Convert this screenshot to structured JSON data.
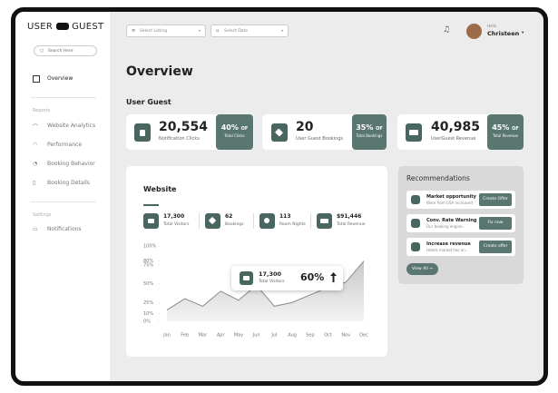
{
  "sidebar": {
    "logo_left": "USER",
    "logo_right": "GUEST",
    "search_placeholder": "Search Here",
    "overview": "Overview",
    "reports_heading": "Reports",
    "reports": [
      "Website Analytics",
      "Performance",
      "Booking Behavior",
      "Booking Details"
    ],
    "settings_heading": "Settings",
    "settings": [
      "Notifications"
    ]
  },
  "topbar": {
    "listing_select": "Select Listing",
    "date_select": "Select Date",
    "greeting": "Hello",
    "user_name": "Christeen"
  },
  "page_title": "Overview",
  "section_title": "User Guest",
  "kpis": [
    {
      "value": "20,554",
      "label": "Notification Clicks",
      "share": "40%",
      "share_of": "OF",
      "share_label": "Total Clicks"
    },
    {
      "value": "20",
      "label": "User Guest Bookings",
      "share": "35%",
      "share_of": "OF",
      "share_label": "Total Bookings"
    },
    {
      "value": "40,985",
      "label": "UserGuest Revenue",
      "share": "45%",
      "share_of": "OF",
      "share_label": "Total Revenue"
    }
  ],
  "website": {
    "title": "Website",
    "stats": [
      {
        "value": "17,300",
        "label": "Total Visitors"
      },
      {
        "value": "62",
        "label": "Bookings"
      },
      {
        "value": "113",
        "label": "Room Nights"
      },
      {
        "value": "$91,446",
        "label": "Total Revenue"
      }
    ],
    "tooltip": {
      "value": "17,300",
      "label": "Total Visitors",
      "percent": "60%"
    },
    "chart_data": {
      "type": "area",
      "categories": [
        "Jan",
        "Feb",
        "Mar",
        "Apr",
        "May",
        "Jun",
        "Jul",
        "Aug",
        "Sep",
        "Oct",
        "Nov",
        "Dec"
      ],
      "values": [
        15,
        30,
        20,
        40,
        28,
        48,
        20,
        25,
        35,
        45,
        52,
        80
      ],
      "color": "#8a8a8a",
      "ylim": [
        0,
        100
      ],
      "yticks": [
        {
          "value": 0,
          "label": "0%"
        },
        {
          "value": 10,
          "label": "10%"
        },
        {
          "value": 25,
          "label": "25%"
        },
        {
          "value": 50,
          "label": "50%"
        },
        {
          "value": 75,
          "label": "75%"
        },
        {
          "value": 80,
          "label": "80%"
        },
        {
          "value": 100,
          "label": "100%"
        }
      ]
    }
  },
  "recommendations": {
    "title": "Recommendations",
    "items": [
      {
        "title": "Market opportunity",
        "subtitle": "Were from USA increased",
        "action": "Create Offer"
      },
      {
        "title": "Conv. Rate Warning",
        "subtitle": "Our booking engine...",
        "action": "Fix now"
      },
      {
        "title": "Increase revenue",
        "subtitle": "Hotels market has an...",
        "action": "Create offer"
      }
    ],
    "view_all": "View All"
  }
}
